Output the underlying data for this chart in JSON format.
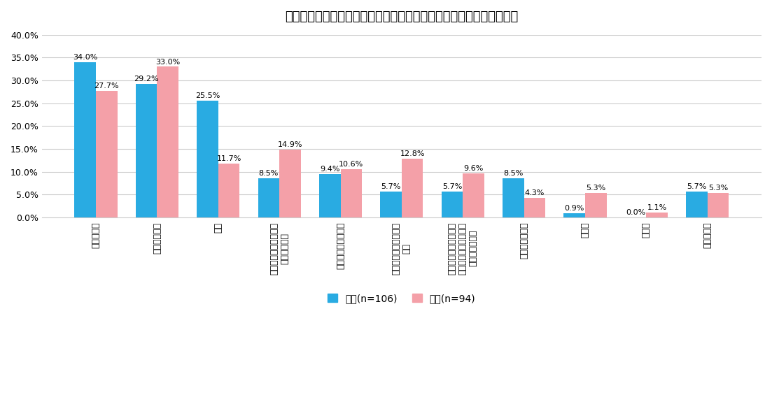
{
  "title": "自分の名前は何を重視して付けたと聞いていますか？（複数選択可）",
  "categories": [
    "漢字・言葉",
    "呼び名・響き",
    "画数",
    "尊敬する人や憧れの人\nの名前を参考",
    "家族の名前との関連",
    "寺社や姓名判断などで\n命名",
    "生まれた月日や季節、\n植物、天候、自然など\nからのイメージ",
    "自分を見た印象",
    "流行り",
    "その他",
    "わからない"
  ],
  "male_values": [
    34.0,
    29.2,
    25.5,
    8.5,
    9.4,
    5.7,
    5.7,
    8.5,
    0.9,
    0.0,
    5.7
  ],
  "female_values": [
    27.7,
    33.0,
    11.7,
    14.9,
    10.6,
    12.8,
    9.6,
    4.3,
    5.3,
    1.1,
    5.3
  ],
  "male_label": "男性(n=106)",
  "female_label": "女性(n=94)",
  "male_color": "#29ABE2",
  "female_color": "#F4A0A8",
  "ylim": [
    0,
    40.0
  ],
  "yticks": [
    0.0,
    5.0,
    10.0,
    15.0,
    20.0,
    25.0,
    30.0,
    35.0,
    40.0
  ],
  "ytick_labels": [
    "0.0%",
    "5.0%",
    "10.0%",
    "15.0%",
    "20.0%",
    "25.0%",
    "30.0%",
    "35.0%",
    "40.0%"
  ],
  "background_color": "#FFFFFF",
  "grid_color": "#CCCCCC",
  "bar_width": 0.35,
  "title_fontsize": 13,
  "tick_fontsize": 9,
  "label_fontsize": 8,
  "legend_fontsize": 10
}
